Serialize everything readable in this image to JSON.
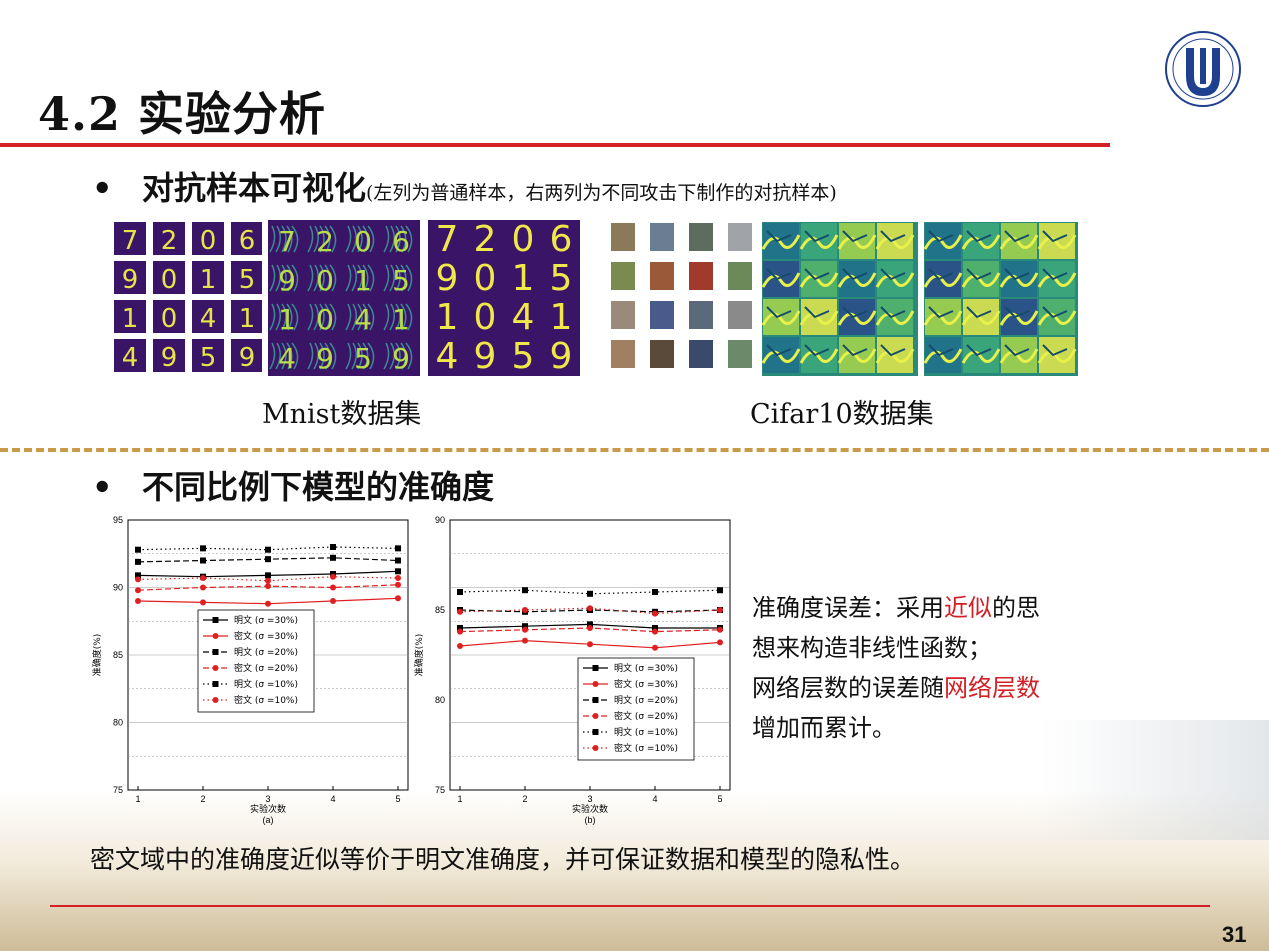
{
  "slide": {
    "title": "4.2 实验分析",
    "page_number": "31",
    "logo_text": "上海大学 SHANGHAI UNIVERSITY"
  },
  "section1": {
    "bullet_mark": "•",
    "heading": "对抗样本可视化",
    "note": "(左列为普通样本，右两列为不同攻击下制作的对抗样本)",
    "mnist": {
      "caption": "Mnist数据集",
      "digits": [
        [
          "7",
          "2",
          "0",
          "6"
        ],
        [
          "9",
          "0",
          "1",
          "5"
        ],
        [
          "1",
          "0",
          "4",
          "1"
        ],
        [
          "4",
          "9",
          "5",
          "9"
        ]
      ]
    },
    "cifar": {
      "caption": "Cifar10数据集"
    }
  },
  "section2": {
    "bullet_mark": "•",
    "heading": "不同比例下模型的准确度",
    "description": {
      "line1_a": "准确度误差：采用",
      "line1_red": "近似",
      "line1_b": "的思",
      "line2": "想来构造非线性函数；",
      "line3_a": "网络层数的误差随",
      "line3_red": "网络层数",
      "line4": "增加而累计。"
    },
    "conclusion": "密文域中的准确度近似等价于明文准确度，并可保证数据和模型的隐私性。"
  },
  "chart_data": [
    {
      "type": "line",
      "label": "(a)",
      "xlabel": "实验次数",
      "ylabel": "准确度(%)",
      "x": [
        1,
        2,
        3,
        4,
        5
      ],
      "xticks": [
        "1",
        "2",
        "3",
        "4",
        "5"
      ],
      "ylim": [
        75,
        95
      ],
      "yticks": [
        "75",
        "80",
        "85",
        "90",
        "95"
      ],
      "legend_position": "center-left",
      "series": [
        {
          "name": "明文 (σ =30%)",
          "values": [
            90.9,
            90.8,
            90.9,
            91.0,
            91.2
          ],
          "color": "#000000",
          "dash": "solid"
        },
        {
          "name": "密文 (σ =30%)",
          "values": [
            89.0,
            88.9,
            88.8,
            89.0,
            89.2
          ],
          "color": "#e02020",
          "dash": "solid"
        },
        {
          "name": "明文 (σ =20%)",
          "values": [
            91.9,
            92.0,
            92.1,
            92.2,
            92.0
          ],
          "color": "#000000",
          "dash": "dashed"
        },
        {
          "name": "密文 (σ =20%)",
          "values": [
            89.8,
            90.0,
            90.1,
            90.0,
            90.2
          ],
          "color": "#e02020",
          "dash": "dashed"
        },
        {
          "name": "明文 (σ =10%)",
          "values": [
            92.8,
            92.9,
            92.8,
            93.0,
            92.9
          ],
          "color": "#000000",
          "dash": "dotted"
        },
        {
          "name": "密文 (σ =10%)",
          "values": [
            90.6,
            90.7,
            90.5,
            90.8,
            90.7
          ],
          "color": "#e02020",
          "dash": "dotted"
        }
      ]
    },
    {
      "type": "line",
      "label": "(b)",
      "xlabel": "实验次数",
      "ylabel": "准确度(%)",
      "x": [
        1,
        2,
        3,
        4,
        5
      ],
      "xticks": [
        "1",
        "2",
        "3",
        "4",
        "5"
      ],
      "ylim": [
        75,
        90
      ],
      "yticks": [
        "75",
        "80",
        "85",
        "90"
      ],
      "legend_position": "bottom-right",
      "series": [
        {
          "name": "明文 (σ =30%)",
          "values": [
            84.0,
            84.1,
            84.2,
            84.0,
            84.0
          ],
          "color": "#000000",
          "dash": "solid"
        },
        {
          "name": "密文 (σ =30%)",
          "values": [
            83.0,
            83.3,
            83.1,
            82.9,
            83.2
          ],
          "color": "#e02020",
          "dash": "solid"
        },
        {
          "name": "明文 (σ =20%)",
          "values": [
            85.0,
            84.9,
            85.0,
            84.9,
            85.0
          ],
          "color": "#000000",
          "dash": "dashed"
        },
        {
          "name": "密文 (σ =20%)",
          "values": [
            83.8,
            83.9,
            84.0,
            83.8,
            83.9
          ],
          "color": "#e02020",
          "dash": "dashed"
        },
        {
          "name": "明文 (σ =10%)",
          "values": [
            86.0,
            86.1,
            85.9,
            86.0,
            86.1
          ],
          "color": "#000000",
          "dash": "dotted"
        },
        {
          "name": "密文 (σ =10%)",
          "values": [
            84.9,
            85.0,
            85.1,
            84.8,
            85.0
          ],
          "color": "#e02020",
          "dash": "dotted"
        }
      ]
    }
  ]
}
